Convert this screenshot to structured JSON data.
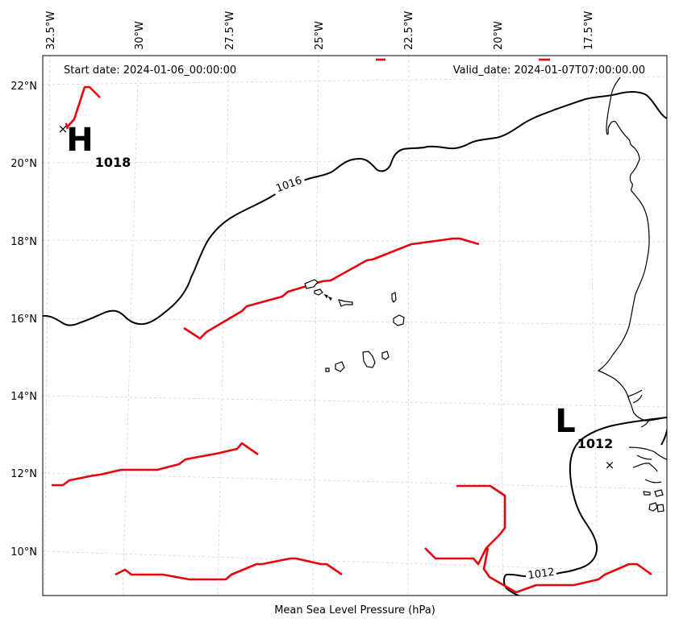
{
  "map": {
    "start_date": "Start date: 2024-01-06_00:00:00",
    "valid_date": "Valid_date: 2024-01-07T07:00:00.00",
    "caption": "Mean Sea Level Pressure (hPa)",
    "lon_labels": [
      "32.5°W",
      "30°W",
      "27.5°W",
      "25°W",
      "22.5°W",
      "20°W",
      "17.5°W"
    ],
    "lat_labels": [
      "22°N",
      "20°N",
      "18°N",
      "16°N",
      "14°N",
      "12°N",
      "10°N"
    ],
    "high": {
      "letter": "H",
      "value": "1018"
    },
    "low": {
      "letter": "L",
      "value": "1012"
    },
    "isobar_labels": [
      "1016",
      "1012"
    ],
    "colors": {
      "front": "#e8000b",
      "isobar": "#000000",
      "grid": "#cccccc"
    }
  }
}
